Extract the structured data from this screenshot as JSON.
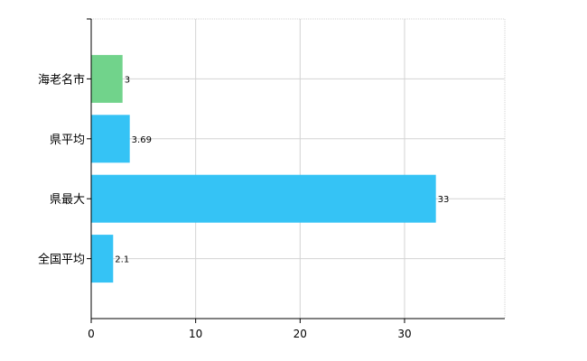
{
  "chart_data": {
    "type": "bar",
    "orientation": "horizontal",
    "categories": [
      "海老名市",
      "県平均",
      "県最大",
      "全国平均"
    ],
    "values": [
      3,
      3.69,
      33,
      2.1
    ],
    "data_labels": [
      "3",
      "3.69",
      "33",
      "2.1"
    ],
    "bar_colors": [
      "#71d38b",
      "#35c3f5",
      "#35c3f5",
      "#35c3f5"
    ],
    "xlim": [
      0,
      39.6
    ],
    "xticks": [
      0,
      10,
      20,
      30
    ],
    "xtick_labels": [
      "0",
      "10",
      "20",
      "30"
    ],
    "grid": true,
    "grid_color": "#d3d3d3",
    "axis_color": "#000000",
    "title": "",
    "xlabel": "",
    "ylabel": ""
  }
}
